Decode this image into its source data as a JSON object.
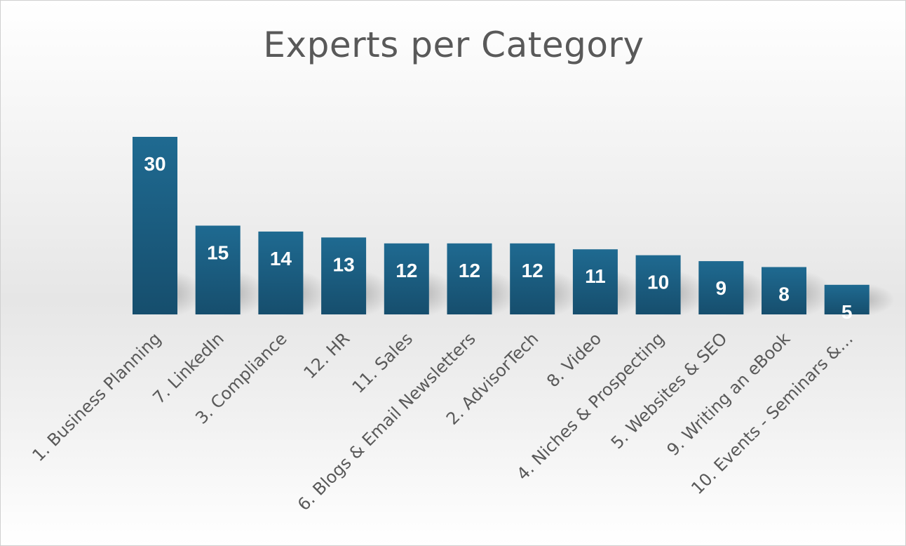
{
  "chart_data": {
    "type": "bar",
    "title": "Experts per Category",
    "xlabel": "",
    "ylabel": "",
    "categories": [
      "1. Business Planning",
      "7. LinkedIn",
      "3. Compliance",
      "12. HR",
      "11. Sales",
      "6. Blogs & Email Newsletters",
      "2. AdvisorTech",
      "8. Video",
      "4. Niches & Prospecting",
      "5. Websites & SEO",
      "9. Writing an eBook",
      "10. Events - Seminars &…"
    ],
    "values": [
      30,
      15,
      14,
      13,
      12,
      12,
      12,
      11,
      10,
      9,
      8,
      5
    ],
    "ylim": [
      0,
      30
    ],
    "grid": false,
    "legend": "none",
    "data_labels": "inside-end",
    "bar_color": "#1a5c80"
  }
}
